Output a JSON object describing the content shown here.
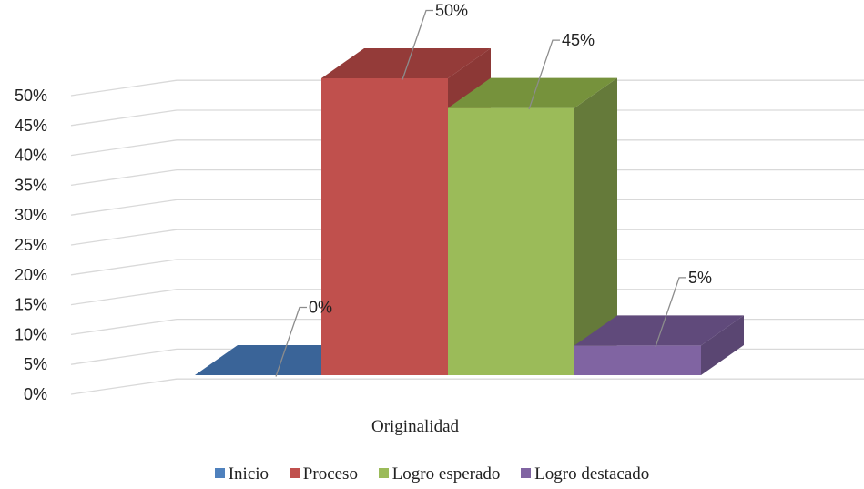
{
  "chart_data": {
    "type": "bar",
    "categories": [
      "Originalidad"
    ],
    "series": [
      {
        "name": "Inicio",
        "values": [
          0
        ],
        "label": "0%",
        "color": "#4F81BD",
        "side_color": "#385D8A",
        "top_color": "#3A6498"
      },
      {
        "name": "Proceso",
        "values": [
          50
        ],
        "label": "50%",
        "color": "#C0504D",
        "side_color": "#8C3836",
        "top_color": "#943B39"
      },
      {
        "name": "Logro esperado",
        "values": [
          45
        ],
        "label": "45%",
        "color": "#9BBB59",
        "side_color": "#657A3A",
        "top_color": "#76923C"
      },
      {
        "name": "Logro destacado",
        "values": [
          5
        ],
        "label": "5%",
        "color": "#8064A2",
        "side_color": "#5A4672",
        "top_color": "#604A7B"
      }
    ],
    "ylim": [
      0,
      50
    ],
    "yticks": [
      "0%",
      "5%",
      "10%",
      "15%",
      "20%",
      "25%",
      "30%",
      "35%",
      "40%",
      "45%",
      "50%"
    ],
    "grid": true,
    "legend_position": "bottom",
    "grid_color": "#D9D9D9",
    "title": "",
    "xlabel": "",
    "ylabel": ""
  }
}
